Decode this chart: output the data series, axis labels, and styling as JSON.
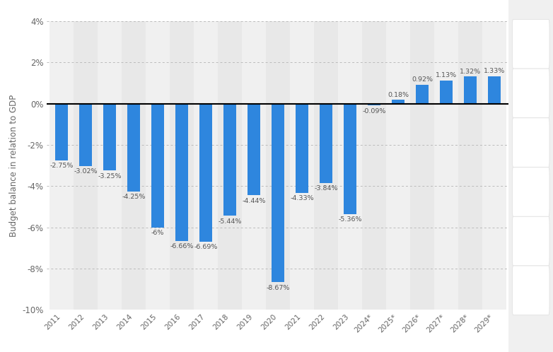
{
  "categories": [
    "2011",
    "2012",
    "2013",
    "2014",
    "2015",
    "2016",
    "2017",
    "2018",
    "2019",
    "2020",
    "2021",
    "2022",
    "2023",
    "2024*",
    "2025*",
    "2026*",
    "2027*",
    "2028*",
    "2029*"
  ],
  "values": [
    -2.75,
    -3.02,
    -3.25,
    -4.25,
    -6.0,
    -6.66,
    -6.69,
    -5.44,
    -4.44,
    -8.67,
    -4.33,
    -3.84,
    -5.36,
    -0.09,
    0.18,
    0.92,
    1.13,
    1.32,
    1.33
  ],
  "bar_color": "#2e86de",
  "ylabel": "Budget balance in relation to GDP",
  "ylim": [
    -10,
    4
  ],
  "yticks": [
    -10,
    -8,
    -6,
    -4,
    -2,
    0,
    2,
    4
  ],
  "ytick_labels": [
    "-10%",
    "-8%",
    "-6%",
    "-4%",
    "-2%",
    "0%",
    "2%",
    "4%"
  ],
  "background_color": "#ffffff",
  "plot_bg_light": "#f0f0f0",
  "plot_bg_dark": "#e8e8e8",
  "sidebar_color": "#f0f0f0",
  "grid_color": "#bbbbbb",
  "zero_line_color": "#000000",
  "label_fontsize": 6.8,
  "label_color": "#555555",
  "tick_color": "#666666",
  "ylabel_fontsize": 8.5
}
